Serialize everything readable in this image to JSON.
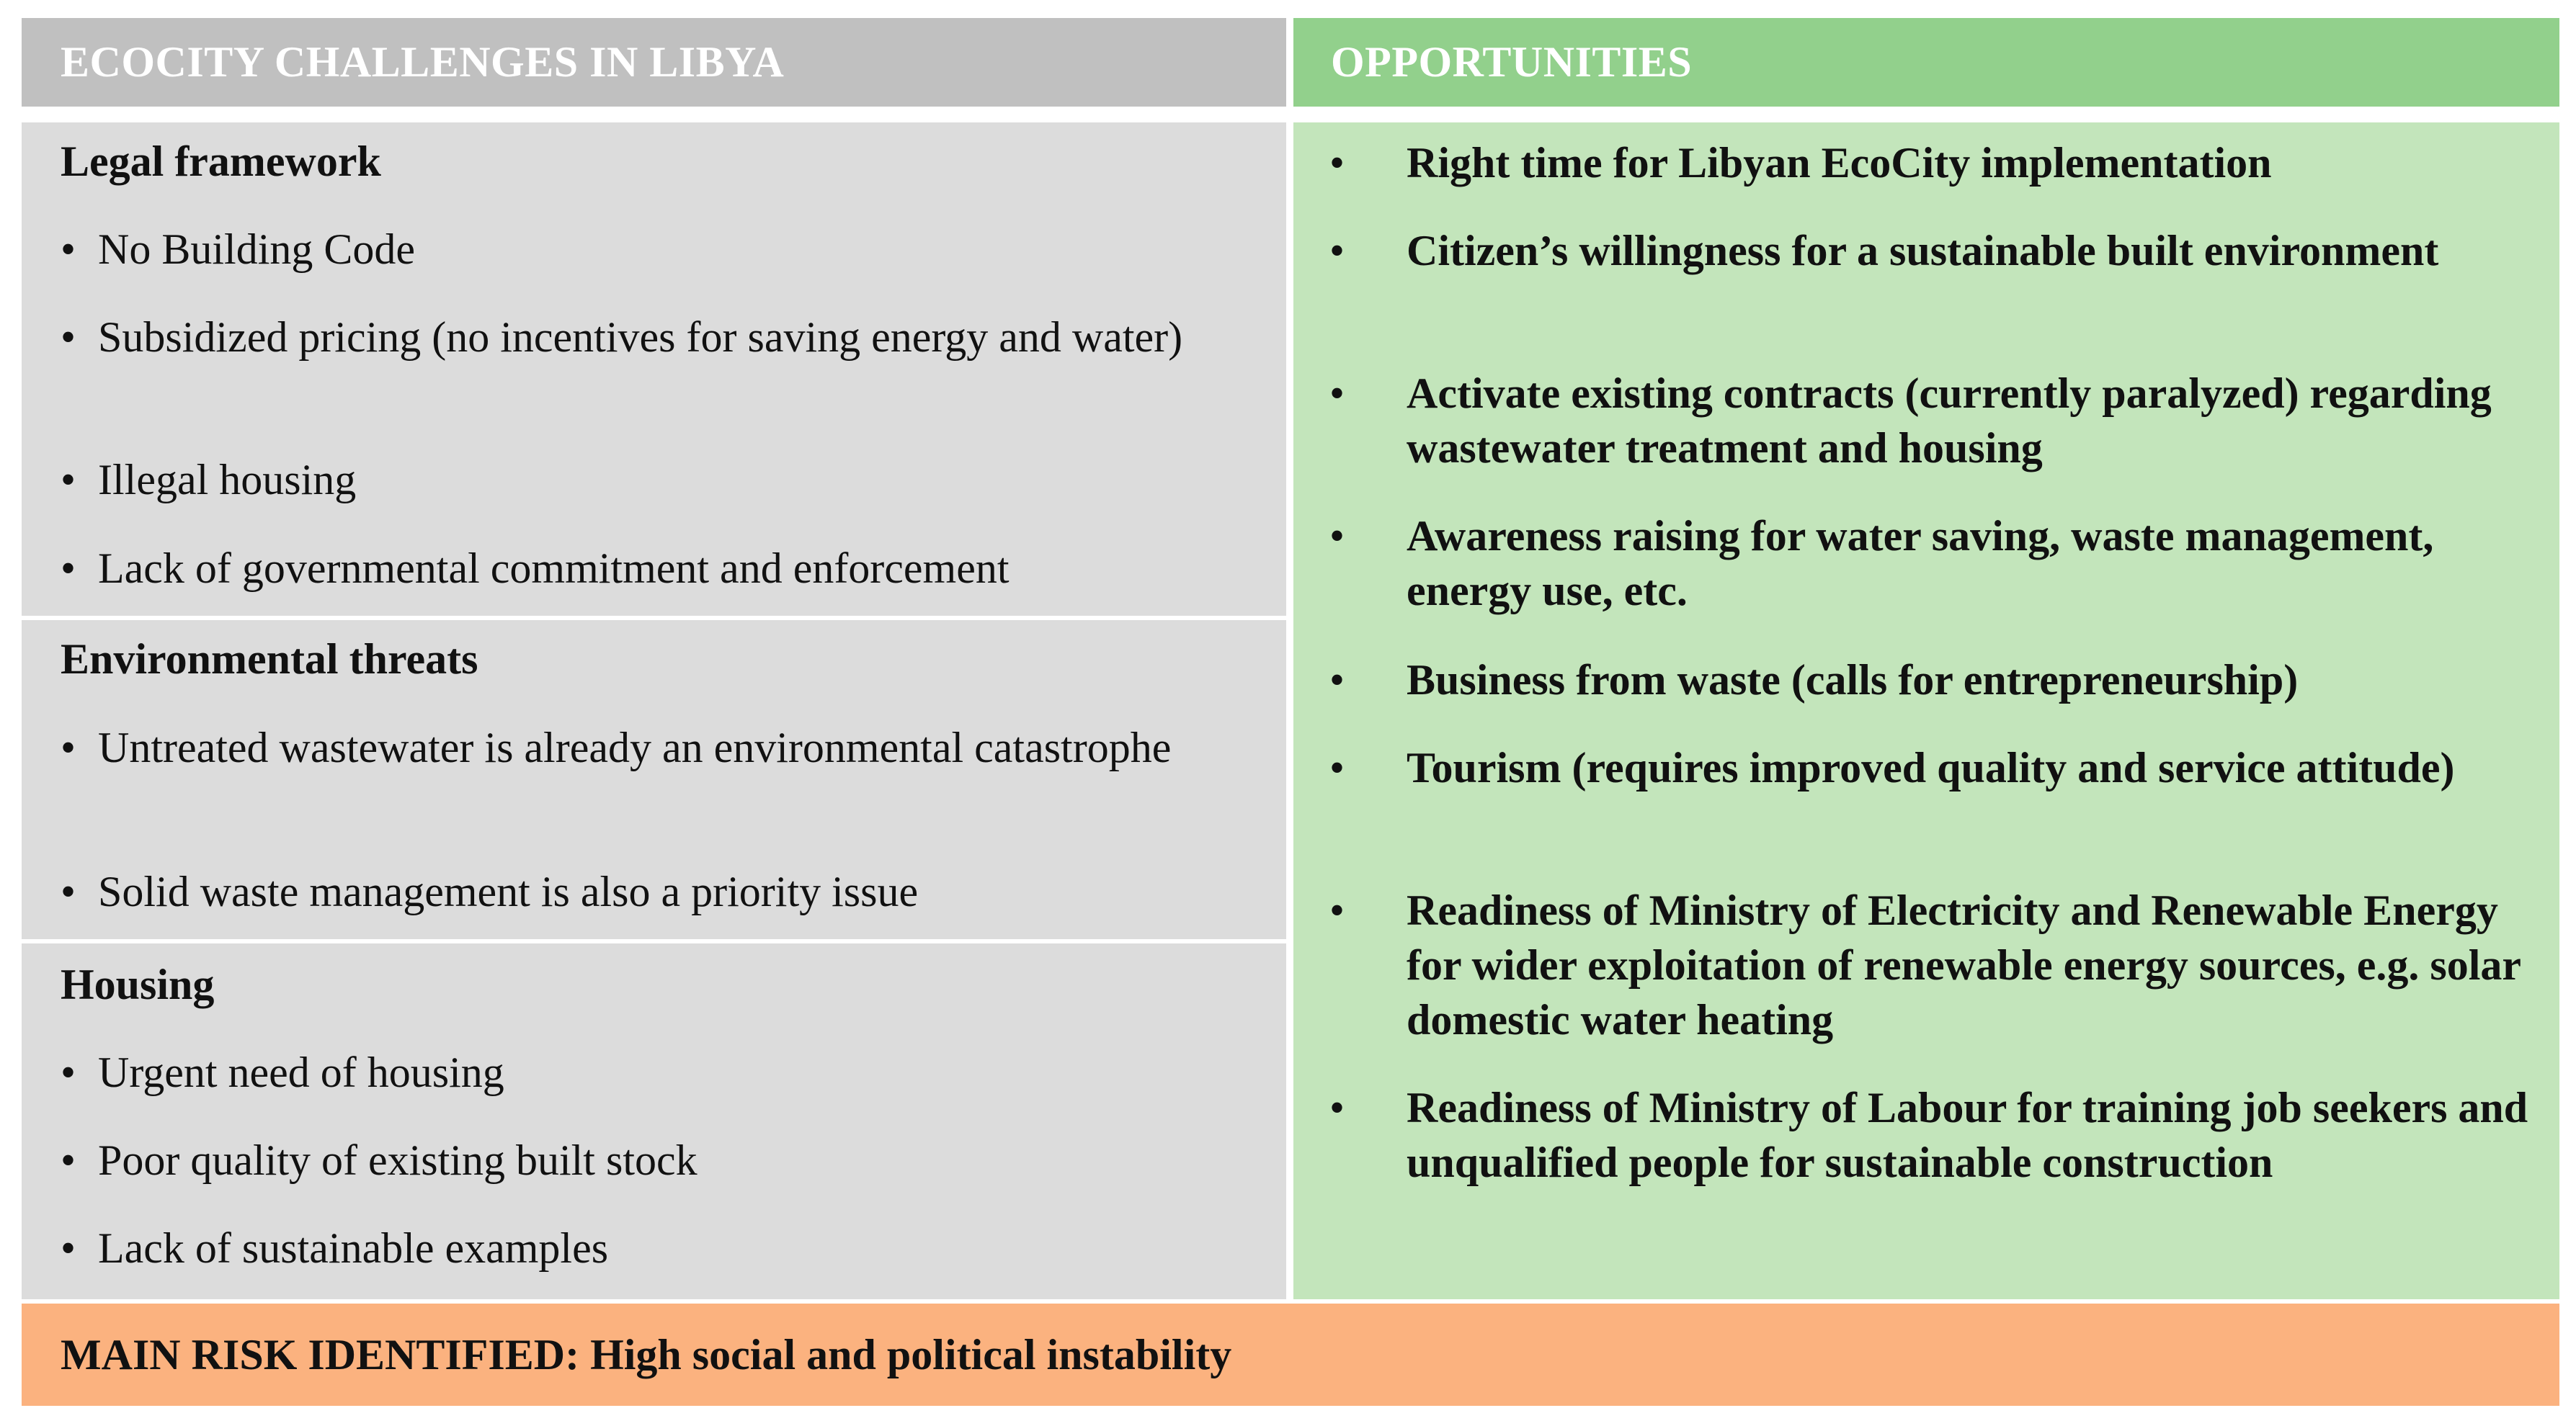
{
  "header": {
    "challenges_title": "ECOCITY CHALLENGES IN LIBYA",
    "opportunities_title": "OPPORTUNITIES"
  },
  "challenges": {
    "legal": {
      "title": "Legal framework",
      "items": [
        "No Building Code",
        "Subsidized pricing (no incentives for saving energy and water)",
        "Illegal housing",
        "Lack of governmental commitment and enforcement"
      ]
    },
    "environmental": {
      "title": "Environmental threats",
      "items": [
        "Untreated wastewater is already an environmental catastrophe",
        "Solid waste management is also a priority issue"
      ]
    },
    "housing": {
      "title": "Housing",
      "items": [
        "Urgent need of housing",
        "Poor quality of existing built stock",
        "Lack of sustainable examples"
      ]
    }
  },
  "opportunities": {
    "items": [
      "Right time for Libyan EcoCity implementation",
      "Citizen’s willingness  for a sustainable built environment",
      "Activate existing contracts (currently paralyzed) regarding wastewater treatment and housing",
      "Awareness raising for water saving, waste management, energy use, etc.",
      "Business from waste (calls for entrepreneurship)",
      "Tourism (requires improved quality and service attitude)",
      "Readiness of Ministry of Electricity and Renewable Energy for wider exploitation of renewable energy sources, e.g. solar domestic water heating",
      "Readiness of Ministry of Labour for training job seekers and unqualified  people for sustainable construction"
    ]
  },
  "risk": {
    "text": "MAIN RISK IDENTIFIED: High social and political instability"
  },
  "colors": {
    "challenges_header": "#c0c0c0",
    "challenges_body": "#dcdcdc",
    "opportunities_header": "#92d08c",
    "opportunities_body": "#c3e5bb",
    "risk_band": "#fbb27f"
  }
}
